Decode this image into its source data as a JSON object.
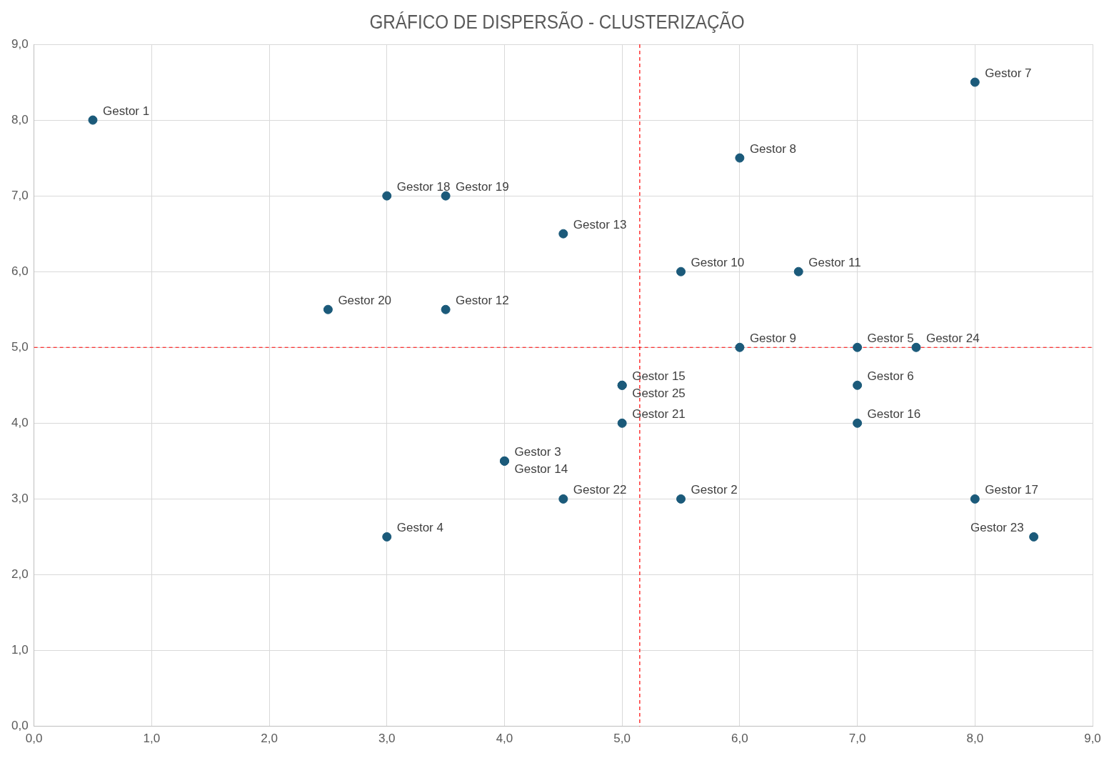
{
  "chart_data": {
    "type": "scatter",
    "title": "GRÁFICO DE DISPERSÃO - CLUSTERIZAÇÃO",
    "marker": "circle",
    "grid": true,
    "legend": false,
    "series": [
      {
        "color": "#1b5a7a",
        "x": [
          0.5,
          5.5,
          4,
          3,
          7,
          7,
          8,
          6,
          6,
          5.5,
          6.5,
          3.5,
          4.5,
          4,
          5,
          7,
          8,
          3,
          3.5,
          2.5,
          5,
          4.5,
          8.5,
          7.5,
          5
        ],
        "values": [
          8,
          3,
          3.5,
          2.5,
          5,
          4.5,
          8.5,
          7.5,
          5,
          6,
          6,
          5.5,
          6.5,
          3.5,
          4.5,
          4,
          3,
          7,
          7,
          5.5,
          4,
          3,
          2.5,
          5,
          4.5
        ]
      }
    ],
    "xlim": [
      0,
      9
    ],
    "ylim": [
      0,
      9
    ],
    "xticks": [
      {
        "value": 0,
        "label": "0,0"
      },
      {
        "value": 1,
        "label": "1,0"
      },
      {
        "value": 2,
        "label": "2,0"
      },
      {
        "value": 3,
        "label": "3,0"
      },
      {
        "value": 4,
        "label": "4,0"
      },
      {
        "value": 5,
        "label": "5,0"
      },
      {
        "value": 6,
        "label": "6,0"
      },
      {
        "value": 7,
        "label": "7,0"
      },
      {
        "value": 8,
        "label": "8,0"
      },
      {
        "value": 9,
        "label": "9,0"
      }
    ],
    "yticks": [
      {
        "value": 0,
        "label": "0,0"
      },
      {
        "value": 1,
        "label": "1,0"
      },
      {
        "value": 2,
        "label": "2,0"
      },
      {
        "value": 3,
        "label": "3,0"
      },
      {
        "value": 4,
        "label": "4,0"
      },
      {
        "value": 5,
        "label": "5,0"
      },
      {
        "value": 6,
        "label": "6,0"
      },
      {
        "value": 7,
        "label": "7,0"
      },
      {
        "value": 8,
        "label": "8,0"
      },
      {
        "value": 9,
        "label": "9,0"
      }
    ],
    "ref_lines": [
      {
        "axis": "x",
        "value": 5.15,
        "color": "#ff0000",
        "line_style": "dashed"
      },
      {
        "axis": "y",
        "value": 5,
        "color": "#ff0000",
        "line_style": "dashed"
      }
    ],
    "annotations": [
      {
        "text": "Gestor 1",
        "x": 0.5,
        "y": 8
      },
      {
        "text": "Gestor 2",
        "x": 5.5,
        "y": 3
      },
      {
        "text": "Gestor 3",
        "x": 4,
        "y": 3.5
      },
      {
        "text": "Gestor 4",
        "x": 3,
        "y": 2.5
      },
      {
        "text": "Gestor 5",
        "x": 7,
        "y": 5
      },
      {
        "text": "Gestor 6",
        "x": 7,
        "y": 4.5
      },
      {
        "text": "Gestor 7",
        "x": 8,
        "y": 8.5
      },
      {
        "text": "Gestor 8",
        "x": 6,
        "y": 7.5
      },
      {
        "text": "Gestor 9",
        "x": 6,
        "y": 5
      },
      {
        "text": "Gestor 10",
        "x": 5.5,
        "y": 6
      },
      {
        "text": "Gestor 11",
        "x": 6.5,
        "y": 6
      },
      {
        "text": "Gestor 12",
        "x": 3.5,
        "y": 5.5
      },
      {
        "text": "Gestor 13",
        "x": 4.5,
        "y": 6.5
      },
      {
        "text": "Gestor 14",
        "x": 4,
        "y": 3.5
      },
      {
        "text": "Gestor 15",
        "x": 5,
        "y": 4.5
      },
      {
        "text": "Gestor 16",
        "x": 7,
        "y": 4
      },
      {
        "text": "Gestor 17",
        "x": 8,
        "y": 3
      },
      {
        "text": "Gestor 18",
        "x": 3,
        "y": 7
      },
      {
        "text": "Gestor 19",
        "x": 3.5,
        "y": 7
      },
      {
        "text": "Gestor 20",
        "x": 2.5,
        "y": 5.5
      },
      {
        "text": "Gestor 21",
        "x": 5,
        "y": 4
      },
      {
        "text": "Gestor 22",
        "x": 4.5,
        "y": 3
      },
      {
        "text": "Gestor 23",
        "x": 8.5,
        "y": 2.5
      },
      {
        "text": "Gestor 24",
        "x": 7.5,
        "y": 5
      },
      {
        "text": "Gestor 25",
        "x": 5,
        "y": 4.5
      }
    ]
  }
}
